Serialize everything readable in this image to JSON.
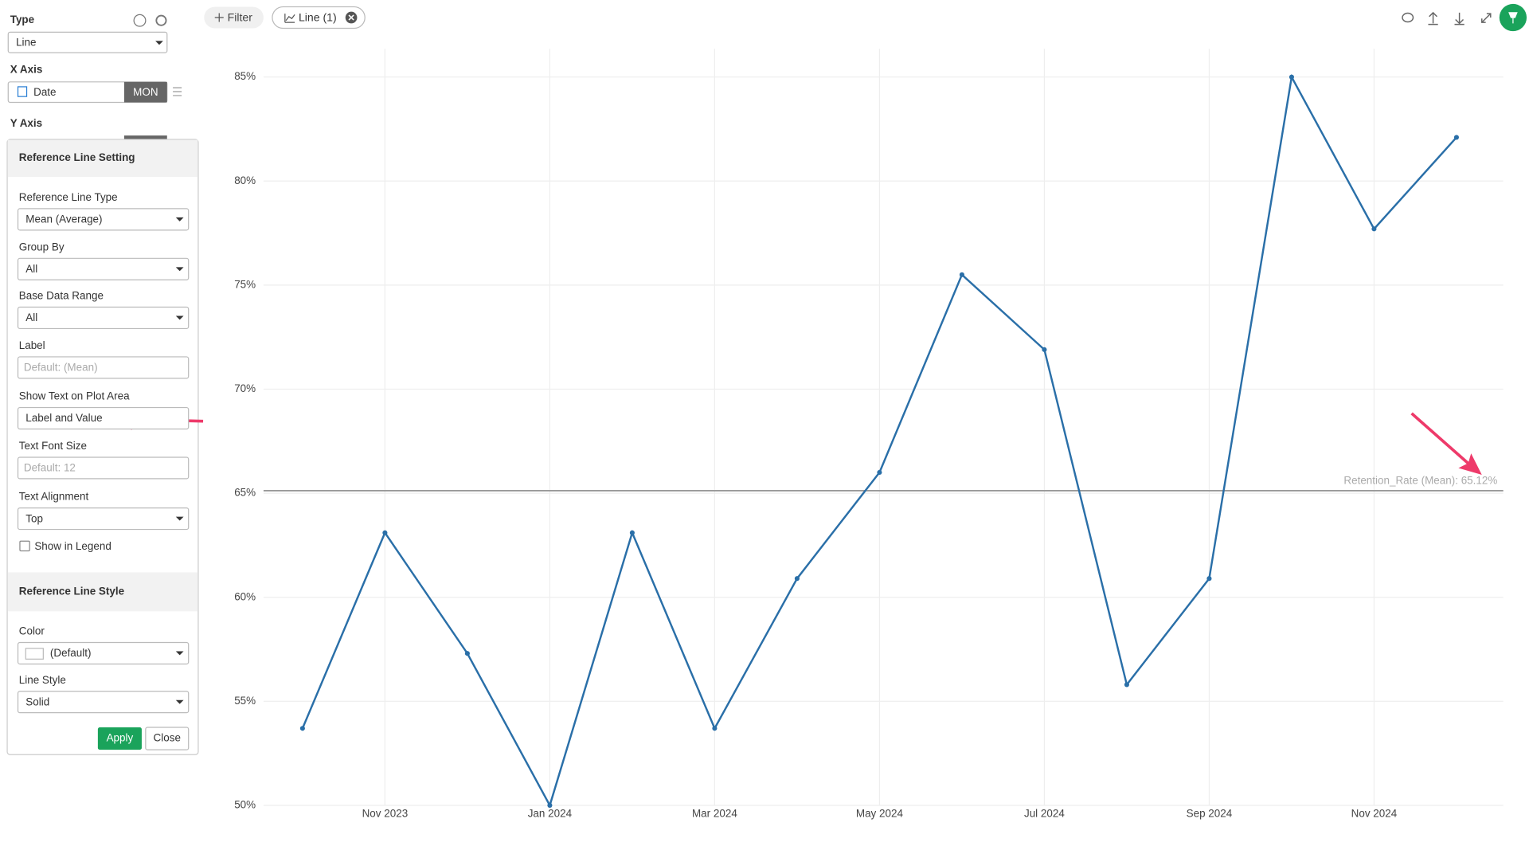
{
  "sidebar": {
    "type_label": "Type",
    "type_value": "Line",
    "x_axis_label": "X Axis",
    "x_field": "Date",
    "x_unit": "MON",
    "y_axis_label": "Y Axis"
  },
  "toolbar": {
    "filter": "Filter",
    "chart_tab": "Line (1)"
  },
  "reference_panel": {
    "title": "Reference Line Setting",
    "fields": [
      {
        "label": "Reference Line Type",
        "value": "Mean (Average)",
        "dropdown": true
      },
      {
        "label": "Group By",
        "value": "All",
        "dropdown": true
      },
      {
        "label": "Base Data Range",
        "value": "All",
        "dropdown": true
      },
      {
        "label": "Label",
        "placeholder": "Default: (Mean)"
      },
      {
        "label": "Show Text on Plot Area",
        "value": "Label and Value"
      },
      {
        "label": "Text Font Size",
        "placeholder": "Default: 12"
      },
      {
        "label": "Text Alignment",
        "value": "Top",
        "dropdown": true
      }
    ],
    "checkbox": "Show in Legend",
    "style_title": "Reference Line Style",
    "style_fields": [
      {
        "label": "Color",
        "value": "(Default)",
        "dropdown": true
      },
      {
        "label": "Line Style",
        "value": "Solid",
        "dropdown": true
      }
    ],
    "apply": "Apply",
    "close": "Close"
  },
  "chart_data": {
    "type": "line",
    "x": [
      "2023-10",
      "2023-11",
      "2023-12",
      "2024-01",
      "2024-02",
      "2024-03",
      "2024-04",
      "2024-05",
      "2024-06",
      "2024-07",
      "2024-08",
      "2024-09",
      "2024-10",
      "2024-11",
      "2024-12"
    ],
    "series": [
      {
        "name": "Retention_Rate",
        "color": "#2a6fa8",
        "values": [
          53.7,
          63.1,
          57.3,
          50.0,
          63.1,
          53.7,
          60.9,
          66.0,
          75.5,
          71.9,
          55.8,
          60.9,
          85.0,
          77.7,
          82.1
        ]
      }
    ],
    "xticks": [
      {
        "value": "2023-11",
        "label": "Nov 2023"
      },
      {
        "value": "2024-01",
        "label": "Jan 2024"
      },
      {
        "value": "2024-03",
        "label": "Mar 2024"
      },
      {
        "value": "2024-05",
        "label": "May 2024"
      },
      {
        "value": "2024-07",
        "label": "Jul 2024"
      },
      {
        "value": "2024-09",
        "label": "Sep 2024"
      },
      {
        "value": "2024-11",
        "label": "Nov 2024"
      }
    ],
    "ylim": [
      50,
      85
    ],
    "yticks": [
      {
        "value": 50,
        "label": "50%"
      },
      {
        "value": 55,
        "label": "55%"
      },
      {
        "value": 60,
        "label": "60%"
      },
      {
        "value": 65,
        "label": "65%"
      },
      {
        "value": 70,
        "label": "70%"
      },
      {
        "value": 75,
        "label": "75%"
      },
      {
        "value": 80,
        "label": "80%"
      },
      {
        "value": 85,
        "label": "85%"
      }
    ],
    "grid": true,
    "reference_line": {
      "value": 65.12,
      "label": "Retention_Rate (Mean): 65.12%",
      "color": "#999999"
    }
  }
}
